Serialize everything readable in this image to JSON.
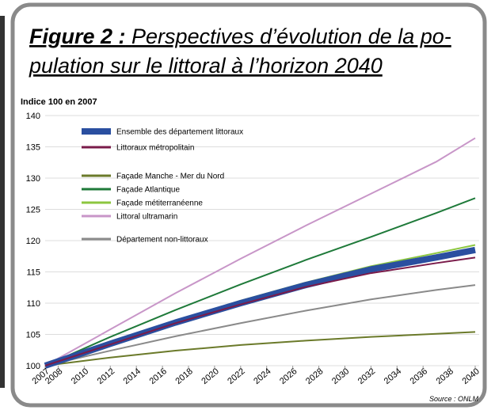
{
  "chart_data": {
    "type": "line",
    "title_label": "Figure 2 :",
    "title_lines": [
      "Perspectives d’évolution de la po-",
      "pulation sur le littoral à l’horizon 2040"
    ],
    "ylabel": "Indice 100 en 2007",
    "source": "Source : ONLM",
    "x": [
      2007,
      2012,
      2017,
      2022,
      2027,
      2032,
      2037,
      2040
    ],
    "xlim": [
      2007,
      2040
    ],
    "xticks": [
      2007,
      2008,
      2010,
      2012,
      2014,
      2016,
      2018,
      2020,
      2022,
      2024,
      2026,
      2028,
      2030,
      2032,
      2034,
      2036,
      2038,
      2040
    ],
    "ylim": [
      100,
      140
    ],
    "yticks": [
      100,
      105,
      110,
      115,
      120,
      125,
      130,
      135,
      140
    ],
    "grid": true,
    "series": [
      {
        "name": "Façade Manche - Mer du Nord",
        "color": "#6b7a2a",
        "width": 2,
        "values": [
          100,
          101.3,
          102.4,
          103.3,
          104.0,
          104.6,
          105.1,
          105.4
        ]
      },
      {
        "name": "Département non-littoraux",
        "color": "#8a8a8a",
        "width": 2,
        "values": [
          100,
          102.4,
          104.7,
          106.8,
          108.8,
          110.6,
          112.1,
          112.9
        ]
      },
      {
        "name": "Littoral ultramarin",
        "color": "#c896c8",
        "width": 2,
        "values": [
          100,
          105.8,
          111.6,
          117.1,
          122.4,
          127.5,
          132.6,
          136.4
        ]
      },
      {
        "name": "Façade Atlantique",
        "color": "#1f7a3a",
        "width": 2,
        "values": [
          100,
          104.6,
          108.9,
          113.0,
          116.9,
          120.6,
          124.4,
          126.8
        ]
      },
      {
        "name": "Façade métiterranéenne",
        "color": "#8cc63f",
        "width": 2,
        "values": [
          100,
          103.7,
          107.2,
          110.4,
          113.3,
          115.9,
          118.0,
          119.3
        ]
      },
      {
        "name": "Ensemble des département littoraux",
        "color": "#2a4fa0",
        "width": 8,
        "values": [
          100,
          103.5,
          106.9,
          110.0,
          112.9,
          115.4,
          117.3,
          118.5
        ]
      },
      {
        "name": "Littoraux métropolitain",
        "color": "#7a1b4a",
        "width": 2,
        "values": [
          100,
          103.4,
          106.8,
          109.8,
          112.6,
          114.8,
          116.4,
          117.3
        ]
      }
    ]
  }
}
